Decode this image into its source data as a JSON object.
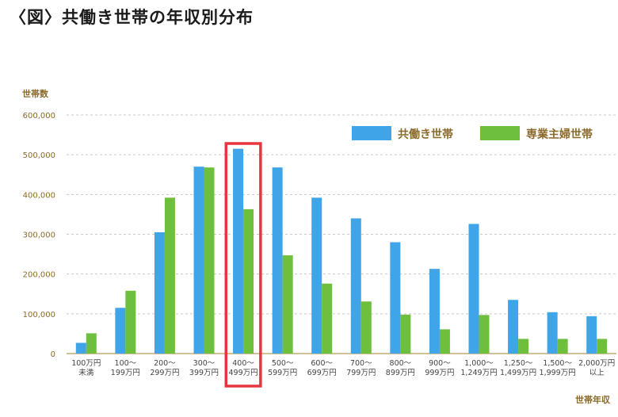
{
  "title": "〈図〉共働き世帯の年収別分布",
  "chart_data": {
    "type": "bar",
    "ylabel": "世帯数",
    "xlabel": "世帯年収",
    "ylim": [
      0,
      600000
    ],
    "yticks": [
      "0",
      "100,000",
      "200,000",
      "300,000",
      "400,000",
      "500,000",
      "600,000"
    ],
    "grid": true,
    "legend_position": "top-right",
    "categories": [
      [
        "100万円",
        "未満"
      ],
      [
        "100～",
        "199万円"
      ],
      [
        "200～",
        "299万円"
      ],
      [
        "300～",
        "399万円"
      ],
      [
        "400～",
        "499万円"
      ],
      [
        "500～",
        "599万円"
      ],
      [
        "600～",
        "699万円"
      ],
      [
        "700～",
        "799万円"
      ],
      [
        "800～",
        "899万円"
      ],
      [
        "900～",
        "999万円"
      ],
      [
        "1,000～",
        "1,249万円"
      ],
      [
        "1,250～",
        "1,499万円"
      ],
      [
        "1,500～",
        "1,999万円"
      ],
      [
        "2,000万円",
        "以上"
      ]
    ],
    "series": [
      {
        "name": "共働き世帯",
        "color": "#3fa4e8",
        "values": [
          27000,
          115000,
          305000,
          470000,
          515000,
          468000,
          392000,
          340000,
          280000,
          213000,
          326000,
          135000,
          104000,
          94000
        ]
      },
      {
        "name": "専業主婦世帯",
        "color": "#6dbf3d",
        "values": [
          51000,
          158000,
          392000,
          468000,
          363000,
          247000,
          176000,
          131000,
          98000,
          61000,
          97000,
          37000,
          37000,
          37000
        ]
      }
    ],
    "highlight_category_index": 4,
    "highlight_color": "#e8343f"
  }
}
